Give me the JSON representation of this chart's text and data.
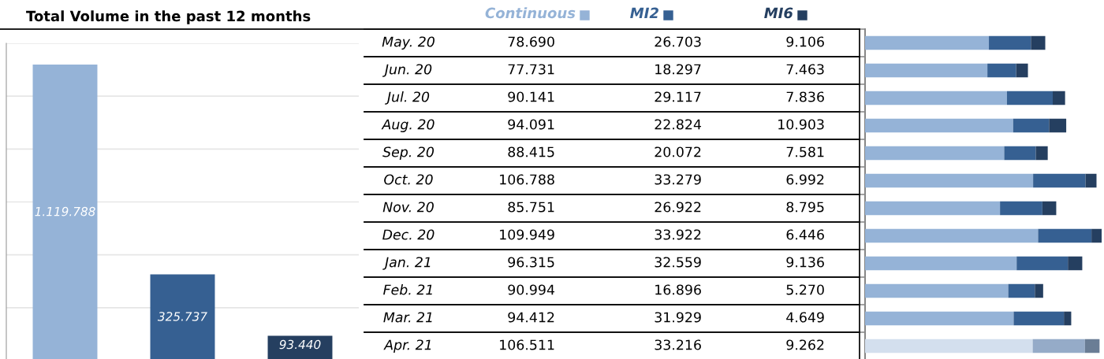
{
  "chart_data": [
    {
      "type": "bar",
      "title": "Total Volume in the past 12 months",
      "categories": [
        null,
        null,
        null
      ],
      "values": [
        1119788,
        325737,
        93440
      ],
      "colors": [
        "#95b3d7",
        "#366092",
        "#253f60"
      ],
      "value_labels": [
        "1.119.788",
        "325.737",
        "93.440"
      ],
      "ylim": [
        0,
        1200000
      ],
      "grid": "y",
      "tick_labels": false
    },
    {
      "type": "bar",
      "orientation": "horizontal",
      "stacked": true,
      "legend": "top",
      "tick_labels": "y",
      "categories": [
        "May. 20",
        "Jun. 20",
        "Jul. 20",
        "Aug. 20",
        "Sep. 20",
        "Oct. 20",
        "Nov. 20",
        "Dec. 20",
        "Jan. 21",
        "Feb. 21",
        "Mar. 21",
        "Apr. 21"
      ],
      "series": [
        {
          "name": "Continuous",
          "color": "#95b3d7",
          "colors": [
            "#95b3d7",
            "#95b3d7",
            "#95b3d7",
            "#95b3d7",
            "#95b3d7",
            "#95b3d7",
            "#95b3d7",
            "#95b3d7",
            "#95b3d7",
            "#95b3d7",
            "#95b3d7",
            "#d3dfee"
          ],
          "values": [
            78690,
            77731,
            90141,
            94091,
            88415,
            106788,
            85751,
            109949,
            96315,
            90994,
            94412,
            106511
          ],
          "value_labels": [
            "78.690",
            "77.731",
            "90.141",
            "94.091",
            "88.415",
            "106.788",
            "85.751",
            "109.949",
            "96.315",
            "90.994",
            "94.412",
            "106.511"
          ]
        },
        {
          "name": "MI2",
          "color": "#366092",
          "colors": [
            "#366092",
            "#366092",
            "#366092",
            "#366092",
            "#366092",
            "#366092",
            "#366092",
            "#366092",
            "#366092",
            "#366092",
            "#366092",
            "#95abc8"
          ],
          "values": [
            26703,
            18297,
            29117,
            22824,
            20072,
            33279,
            26922,
            33922,
            32559,
            16896,
            31929,
            33216
          ],
          "value_labels": [
            "26.703",
            "18.297",
            "29.117",
            "22.824",
            "20.072",
            "33.279",
            "26.922",
            "33.922",
            "32.559",
            "16.896",
            "31.929",
            "33.216"
          ]
        },
        {
          "name": "MI6",
          "color": "#253f60",
          "colors": [
            "#253f60",
            "#253f60",
            "#253f60",
            "#253f60",
            "#253f60",
            "#253f60",
            "#253f60",
            "#253f60",
            "#253f60",
            "#253f60",
            "#253f60",
            "#6a7d95"
          ],
          "values": [
            9106,
            7463,
            7836,
            10903,
            7581,
            6992,
            8795,
            6446,
            9136,
            5270,
            4649,
            9262
          ],
          "value_labels": [
            "9.106",
            "7.463",
            "7.836",
            "10.903",
            "7.581",
            "6.992",
            "8.795",
            "6.446",
            "9.136",
            "5.270",
            "4.649",
            "9.262"
          ]
        }
      ]
    }
  ]
}
